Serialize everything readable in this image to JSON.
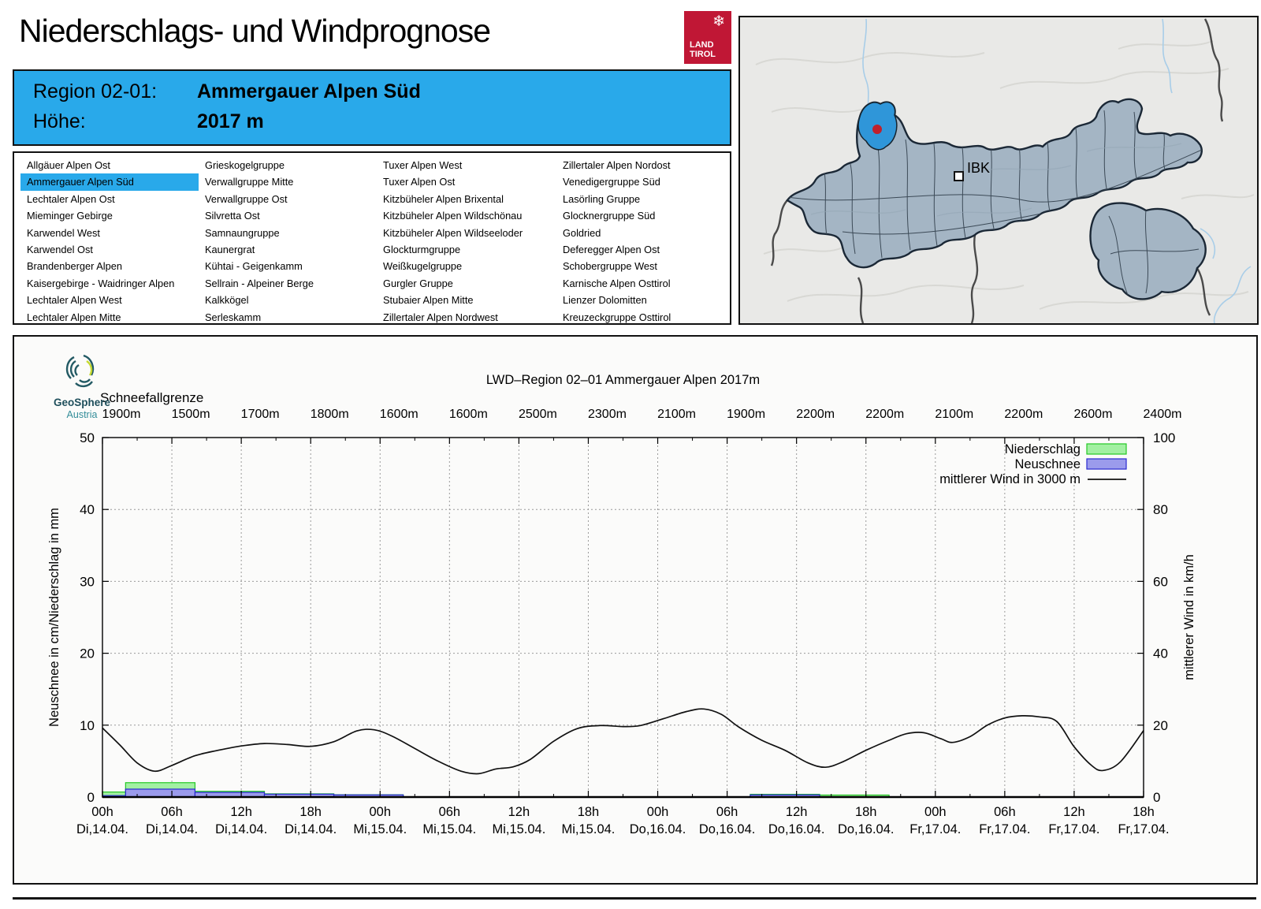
{
  "page": {
    "title": "Niederschlags- und Windprognose"
  },
  "logo": {
    "line1": "LAND",
    "line2": "TIROL",
    "color": "#c01735",
    "snowflake": "❄"
  },
  "header": {
    "region_label": "Region 02-01:",
    "region_value": "Ammergauer Alpen Süd",
    "altitude_label": "Höhe:",
    "altitude_value": "2017 m",
    "bg_color": "#29a9ea"
  },
  "region_list": {
    "selected": "Ammergauer Alpen Süd",
    "columns": [
      [
        "Allgäuer Alpen Ost",
        "Ammergauer Alpen Süd",
        "Lechtaler Alpen Ost",
        "Mieminger Gebirge",
        "Karwendel West",
        "Karwendel Ost",
        "Brandenberger Alpen",
        "Kaisergebirge - Waidringer Alpen",
        "Lechtaler Alpen West",
        "Lechtaler Alpen Mitte"
      ],
      [
        "Grieskogelgruppe",
        "Verwallgruppe Mitte",
        "Verwallgruppe Ost",
        "Silvretta Ost",
        "Samnaungruppe",
        "Kaunergrat",
        "Kühtai - Geigenkamm",
        "Sellrain - Alpeiner Berge",
        "Kalkkögel",
        "Serleskamm"
      ],
      [
        "Tuxer Alpen West",
        "Tuxer Alpen Ost",
        "Kitzbüheler Alpen Brixental",
        "Kitzbüheler Alpen Wildschönau",
        "Kitzbüheler Alpen Wildseeloder",
        "Glockturmgruppe",
        "Weißkugelgruppe",
        "Gurgler Gruppe",
        "Stubaier Alpen Mitte",
        "Zillertaler Alpen Nordwest"
      ],
      [
        "Zillertaler Alpen Nordost",
        "Venedigergruppe Süd",
        "Lasörling Gruppe",
        "Glocknergruppe Süd",
        "Goldried",
        "Deferegger Alpen Ost",
        "Schobergruppe West",
        "Karnische Alpen Osttirol",
        "Lienzer Dolomitten",
        "Kreuzeckgruppe Osttirol"
      ]
    ]
  },
  "map": {
    "label_ibk": "IBK",
    "highlight_color": "#2f96d9",
    "marker_color": "#c0202c"
  },
  "geosphere": {
    "name": "GeoSphere",
    "sub": "Austria"
  },
  "chart_data": {
    "type": "bar+line",
    "title": "LWD–Region 02–01 Ammergauer Alpen 2017m",
    "snowline_heading": "Schneefallgrenze",
    "snowline_labels": [
      "1900m",
      "1500m",
      "1700m",
      "1800m",
      "1600m",
      "1600m",
      "2500m",
      "2300m",
      "2100m",
      "1900m",
      "2200m",
      "2200m",
      "2100m",
      "2200m",
      "2600m",
      "2400m"
    ],
    "ylabel_left": "Neuschnee in cm/Niederschlag in mm",
    "ylabel_right": "mittlerer Wind in km/h",
    "ylim_left": [
      0,
      50
    ],
    "ylim_right": [
      0,
      100
    ],
    "yticks_left": [
      0,
      10,
      20,
      30,
      40,
      50
    ],
    "yticks_right": [
      0,
      20,
      40,
      60,
      80,
      100
    ],
    "x_hours_total": 90,
    "x_major_every": 6,
    "x_minor_every": 3,
    "xtick_hours": [
      "00h",
      "06h",
      "12h",
      "18h",
      "00h",
      "06h",
      "12h",
      "18h",
      "00h",
      "06h",
      "12h",
      "18h",
      "00h",
      "06h",
      "12h",
      "18h"
    ],
    "xtick_dates": [
      "Di,14.04.",
      "Di,14.04.",
      "Di,14.04.",
      "Di,14.04.",
      "Mi,15.04.",
      "Mi,15.04.",
      "Mi,15.04.",
      "Mi,15.04.",
      "Do,16.04.",
      "Do,16.04.",
      "Do,16.04.",
      "Do,16.04.",
      "Fr,17.04.",
      "Fr,17.04.",
      "Fr,17.04.",
      "Fr,17.04."
    ],
    "legend": [
      {
        "label": "Niederschlag",
        "type": "box",
        "fill": "#a2f0a2",
        "stroke": "#25c825"
      },
      {
        "label": "Neuschnee",
        "type": "box",
        "fill": "#9b9bec",
        "stroke": "#2a2ad0"
      },
      {
        "label": "mittlerer Wind in 3000 m",
        "type": "line",
        "stroke": "#111111"
      }
    ],
    "grid_color": "#9a9a9a",
    "series": {
      "niederschlag_mm": [
        [
          0,
          2,
          0.7
        ],
        [
          2,
          8,
          2.0
        ],
        [
          8,
          14,
          0.8
        ],
        [
          14,
          20,
          0.45
        ],
        [
          20,
          26,
          0.32
        ],
        [
          56,
          62,
          0.38
        ],
        [
          62,
          68,
          0.28
        ]
      ],
      "neuschnee_cm": [
        [
          0,
          2,
          0.2
        ],
        [
          2,
          8,
          1.1
        ],
        [
          8,
          14,
          0.65
        ],
        [
          14,
          20,
          0.4
        ],
        [
          20,
          26,
          0.3
        ],
        [
          56,
          62,
          0.3
        ]
      ],
      "wind_kmh": [
        [
          0,
          19.2
        ],
        [
          1.5,
          14.5
        ],
        [
          3,
          9.5
        ],
        [
          4.5,
          7.2
        ],
        [
          6,
          8.8
        ],
        [
          8,
          11.5
        ],
        [
          10,
          13
        ],
        [
          12,
          14.2
        ],
        [
          14,
          14.9
        ],
        [
          16,
          14.6
        ],
        [
          18,
          14.1
        ],
        [
          20,
          15.4
        ],
        [
          22,
          18.4
        ],
        [
          23.5,
          18.7
        ],
        [
          25,
          17
        ],
        [
          27,
          13.5
        ],
        [
          29,
          10
        ],
        [
          31,
          7.2
        ],
        [
          32.5,
          6.5
        ],
        [
          34,
          7.8
        ],
        [
          35.5,
          8.4
        ],
        [
          37,
          10.5
        ],
        [
          39,
          15.5
        ],
        [
          41,
          19
        ],
        [
          43,
          19.9
        ],
        [
          45,
          19.6
        ],
        [
          46.5,
          19.9
        ],
        [
          48.5,
          21.8
        ],
        [
          50.5,
          23.8
        ],
        [
          52,
          24.5
        ],
        [
          53.5,
          23
        ],
        [
          55,
          19.5
        ],
        [
          57,
          15.8
        ],
        [
          59,
          13
        ],
        [
          61,
          9.5
        ],
        [
          62.5,
          8.3
        ],
        [
          64,
          9.8
        ],
        [
          66,
          13
        ],
        [
          68,
          15.8
        ],
        [
          69.5,
          17.6
        ],
        [
          71,
          17.9
        ],
        [
          72.5,
          16.2
        ],
        [
          73.5,
          15.2
        ],
        [
          75,
          16.8
        ],
        [
          76.5,
          20
        ],
        [
          78,
          22
        ],
        [
          79.5,
          22.6
        ],
        [
          81,
          22.3
        ],
        [
          82.5,
          21
        ],
        [
          84,
          14
        ],
        [
          85.5,
          8.8
        ],
        [
          86.5,
          7.4
        ],
        [
          88,
          9.8
        ],
        [
          90,
          18.5
        ]
      ]
    }
  }
}
